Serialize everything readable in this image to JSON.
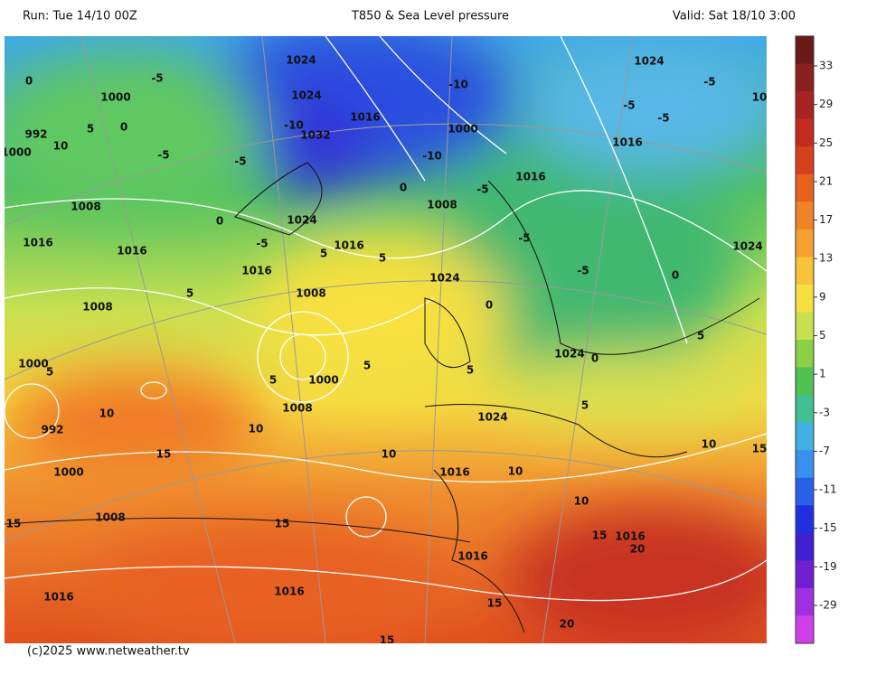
{
  "header": {
    "run": "Run: Tue 14/10 00Z",
    "title": "T850 & Sea Level pressure",
    "valid": "Valid: Sat 18/10 3:00"
  },
  "footer": "(c)2025 www.netweather.tv",
  "colorbar": {
    "ticks": [
      33,
      29,
      25,
      21,
      17,
      13,
      9,
      5,
      1,
      -3,
      -7,
      -11,
      -15,
      -19,
      -29
    ],
    "colors": [
      "#6b1a1a",
      "#8b2020",
      "#a82424",
      "#c42a1e",
      "#d8401c",
      "#e8601e",
      "#f08228",
      "#f5a030",
      "#f8c23a",
      "#f5e040",
      "#c8e050",
      "#8cd048",
      "#50c050",
      "#40c090",
      "#40b0e0",
      "#3890f0",
      "#2a60e8",
      "#2030e0",
      "#4020d0",
      "#7020d0",
      "#a030e0",
      "#d040e8"
    ]
  },
  "map": {
    "labels": [
      "1024",
      "1024",
      "1016",
      "1032",
      "-10",
      "-10",
      "1000",
      "-10",
      "-5",
      "-5",
      "-5",
      "0",
      "992",
      "10",
      "1000",
      "5",
      "0",
      "1000",
      "1008",
      "1016",
      "1016",
      "0",
      "1024",
      "-5",
      "1016",
      "1016",
      "5",
      "0",
      "1008",
      "-5",
      "1016",
      "-5",
      "1024",
      "1008",
      "5",
      "1008",
      "5",
      "1000",
      "5",
      "992",
      "10",
      "1000",
      "5",
      "5",
      "1008",
      "10",
      "15",
      "1000",
      "10",
      "1016",
      "10",
      "1024",
      "1024",
      "0",
      "5",
      "-5",
      "0",
      "5",
      "1024",
      "1016",
      "-5",
      "-5",
      "1024",
      "-5",
      "10",
      "10",
      "15",
      "10",
      "15",
      "1016",
      "20",
      "15",
      "1008",
      "15",
      "1016",
      "15",
      "20",
      "15",
      "1016",
      "1016",
      "0",
      "5"
    ]
  }
}
